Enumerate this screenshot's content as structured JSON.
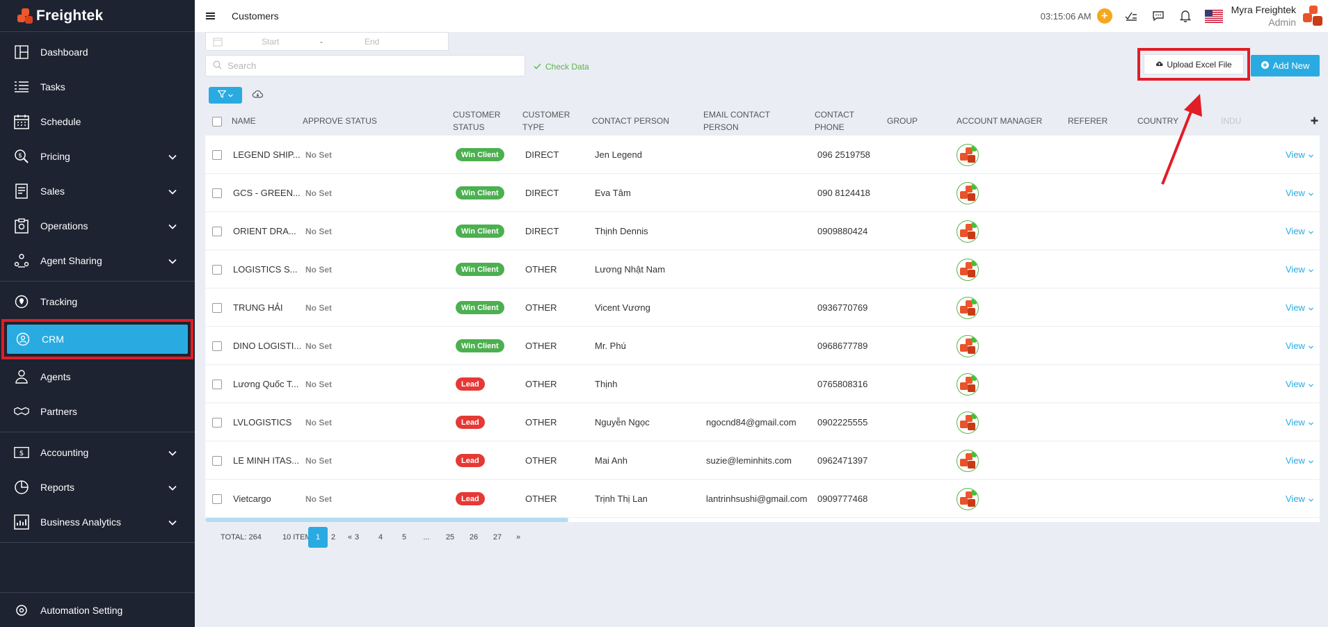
{
  "app": {
    "name": "Freightek",
    "page_title": "Customers"
  },
  "sidebar": {
    "groups": [
      [
        {
          "name": "dashboard",
          "label": "Dashboard",
          "icon": "dashboard-icon",
          "chevron": false
        },
        {
          "name": "tasks",
          "label": "Tasks",
          "icon": "tasks-icon",
          "chevron": false
        },
        {
          "name": "schedule",
          "label": "Schedule",
          "icon": "calendar-icon",
          "chevron": false
        },
        {
          "name": "pricing",
          "label": "Pricing",
          "icon": "pricing-icon",
          "chevron": true
        },
        {
          "name": "sales",
          "label": "Sales",
          "icon": "sales-icon",
          "chevron": true
        },
        {
          "name": "operations",
          "label": "Operations",
          "icon": "operations-icon",
          "chevron": true
        },
        {
          "name": "agent-sharing",
          "label": "Agent Sharing",
          "icon": "agent-sharing-icon",
          "chevron": true
        }
      ],
      [
        {
          "name": "tracking",
          "label": "Tracking",
          "icon": "tracking-icon",
          "chevron": false
        },
        {
          "name": "crm",
          "label": "CRM",
          "icon": "crm-icon",
          "chevron": false,
          "active": true
        },
        {
          "name": "agents",
          "label": "Agents",
          "icon": "agents-icon",
          "chevron": false
        },
        {
          "name": "partners",
          "label": "Partners",
          "icon": "partners-icon",
          "chevron": false
        }
      ],
      [
        {
          "name": "accounting",
          "label": "Accounting",
          "icon": "accounting-icon",
          "chevron": true
        },
        {
          "name": "reports",
          "label": "Reports",
          "icon": "reports-icon",
          "chevron": true
        },
        {
          "name": "business-analytics",
          "label": "Business Analytics",
          "icon": "analytics-icon",
          "chevron": true
        }
      ]
    ],
    "footer": {
      "label": "Automation Setting",
      "icon": "automation-icon"
    }
  },
  "header": {
    "time": "03:15:06 AM",
    "user_name": "Myra Freightek",
    "user_role": "Admin"
  },
  "toolbar": {
    "date_start_placeholder": "Start",
    "date_sep": "-",
    "date_end_placeholder": "End",
    "search_placeholder": "Search",
    "check_data": "Check Data",
    "upload_label": "Upload Excel File",
    "add_new_label": "Add New"
  },
  "table": {
    "columns": [
      {
        "key": "name",
        "label": "NAME"
      },
      {
        "key": "approve",
        "label": "APPROVE STATUS"
      },
      {
        "key": "status",
        "label": "CUSTOMER STATUS"
      },
      {
        "key": "type",
        "label": "CUSTOMER TYPE"
      },
      {
        "key": "contact",
        "label": "CONTACT PERSON"
      },
      {
        "key": "email",
        "label": "EMAIL CONTACT PERSON"
      },
      {
        "key": "phone",
        "label": "CONTACT PHONE"
      },
      {
        "key": "group",
        "label": "GROUP"
      },
      {
        "key": "manager",
        "label": "ACCOUNT MANAGER"
      },
      {
        "key": "referer",
        "label": "REFERER"
      },
      {
        "key": "country",
        "label": "COUNTRY"
      },
      {
        "key": "industry",
        "label": "INDU"
      }
    ],
    "rows": [
      {
        "name": "LEGEND SHIP...",
        "approve": "No Set",
        "status": "Win Client",
        "type": "DIRECT",
        "contact": "Jen Legend",
        "email": "",
        "phone": "096 2519758",
        "action": "View"
      },
      {
        "name": "GCS - GREEN...",
        "approve": "No Set",
        "status": "Win Client",
        "type": "DIRECT",
        "contact": "Eva Tâm",
        "email": "",
        "phone": "090 8124418",
        "action": "View"
      },
      {
        "name": "ORIENT DRA...",
        "approve": "No Set",
        "status": "Win Client",
        "type": "DIRECT",
        "contact": "Thịnh Dennis",
        "email": "",
        "phone": "0909880424",
        "action": "View"
      },
      {
        "name": "LOGISTICS S...",
        "approve": "No Set",
        "status": "Win Client",
        "type": "OTHER",
        "contact": "Lương Nhật Nam",
        "email": "",
        "phone": "",
        "action": "View"
      },
      {
        "name": "TRUNG HẢI",
        "approve": "No Set",
        "status": "Win Client",
        "type": "OTHER",
        "contact": "Vicent Vương",
        "email": "",
        "phone": "0936770769",
        "action": "View"
      },
      {
        "name": "DINO LOGISTI...",
        "approve": "No Set",
        "status": "Win Client",
        "type": "OTHER",
        "contact": "Mr. Phú",
        "email": "",
        "phone": "0968677789",
        "action": "View"
      },
      {
        "name": "Lương Quốc T...",
        "approve": "No Set",
        "status": "Lead",
        "type": "OTHER",
        "contact": "Thịnh",
        "email": "",
        "phone": "0765808316",
        "action": "View"
      },
      {
        "name": "LVLOGISTICS",
        "approve": "No Set",
        "status": "Lead",
        "type": "OTHER",
        "contact": "Nguyễn Ngọc",
        "email": "ngocnd84@gmail.com",
        "phone": "0902225555",
        "action": "View"
      },
      {
        "name": "LE MINH ITAS...",
        "approve": "No Set",
        "status": "Lead",
        "type": "OTHER",
        "contact": "Mai Anh",
        "email": "suzie@leminhits.com",
        "phone": "0962471397",
        "action": "View"
      },
      {
        "name": "Vietcargo",
        "approve": "No Set",
        "status": "Lead",
        "type": "OTHER",
        "contact": "Trịnh Thị Lan",
        "email": "lantrinhsushi@gmail.com",
        "phone": "0909777468",
        "action": "View"
      }
    ]
  },
  "pagination": {
    "total": "TOTAL: 264",
    "page_size": "10 ITEMS",
    "prev": "«",
    "next": "»",
    "pages": [
      "1",
      "2",
      "3",
      "4",
      "5",
      "...",
      "25",
      "26",
      "27"
    ],
    "current": "1"
  },
  "colors": {
    "accent": "#29abe2",
    "win_client": "#4caf50",
    "lead": "#e53935",
    "sidebar_bg": "#1d2330",
    "annotation": "#e11d26"
  }
}
